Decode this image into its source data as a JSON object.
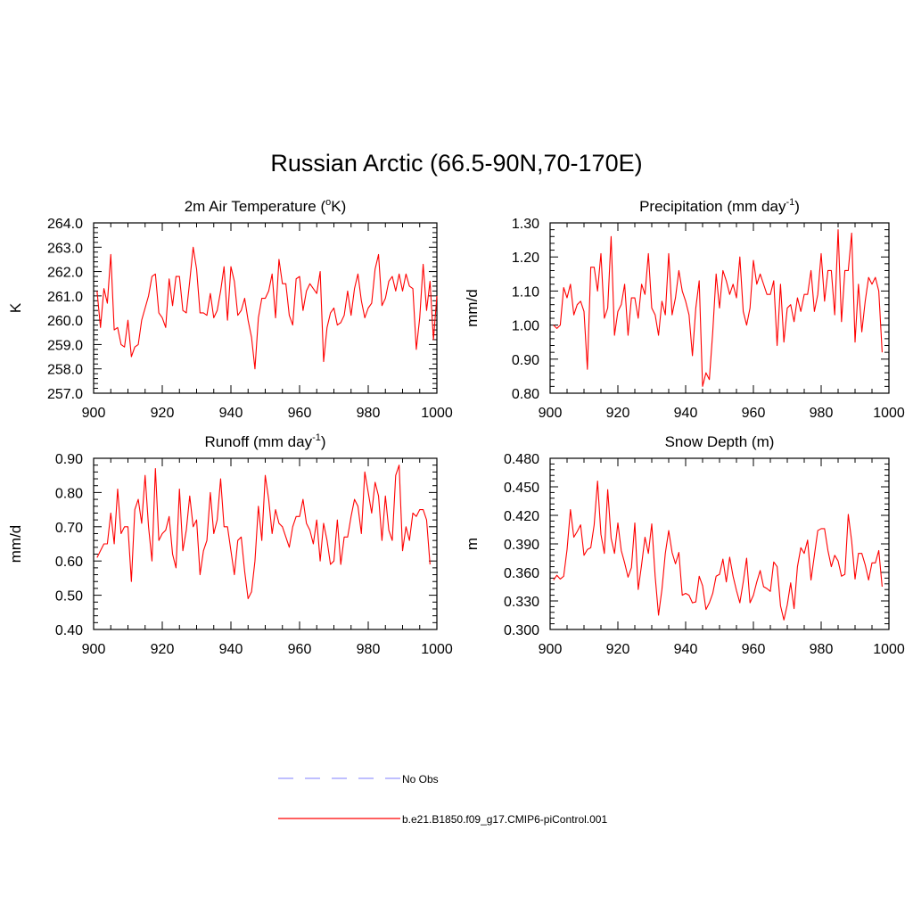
{
  "title": "Russian Arctic (66.5-90N,70-170E)",
  "chart_data": [
    {
      "type": "line",
      "title": "2m Air Temperature (°K)",
      "title_main": "2m Air Temperature (",
      "title_sup": "o",
      "title_tail": "K)",
      "ylabel": "K",
      "xlim": [
        900,
        1000
      ],
      "ylim": [
        257.0,
        264.0
      ],
      "xticks": [
        "900",
        "920",
        "940",
        "960",
        "980",
        "1000"
      ],
      "yticks": [
        "257.0",
        "258.0",
        "259.0",
        "260.0",
        "261.0",
        "262.0",
        "263.0",
        "264.0"
      ],
      "series": [
        {
          "name": "b.e21.B1850.f09_g17.CMIP6-piControl.001",
          "color": "#ff0000",
          "x_start": 901,
          "values": [
            261.2,
            259.7,
            261.3,
            260.7,
            262.7,
            259.6,
            259.7,
            259.0,
            258.9,
            260.0,
            258.5,
            258.9,
            259.0,
            260.0,
            260.5,
            261.0,
            261.8,
            261.9,
            260.3,
            260.1,
            259.7,
            261.7,
            260.6,
            261.8,
            261.8,
            260.4,
            260.3,
            261.6,
            263.0,
            262.1,
            260.3,
            260.3,
            260.2,
            261.1,
            260.1,
            260.4,
            261.2,
            262.2,
            260.0,
            262.2,
            261.6,
            260.2,
            260.4,
            260.9,
            260.0,
            259.3,
            258.0,
            260.1,
            260.9,
            260.9,
            261.2,
            261.9,
            260.1,
            262.5,
            261.5,
            261.5,
            260.2,
            259.8,
            261.7,
            261.8,
            260.4,
            261.2,
            261.5,
            261.3,
            261.1,
            262.0,
            258.3,
            259.7,
            260.3,
            260.5,
            259.8,
            259.9,
            260.2,
            261.2,
            260.2,
            261.3,
            261.9,
            260.8,
            260.1,
            260.5,
            260.7,
            262.1,
            262.7,
            260.6,
            260.9,
            261.6,
            261.8,
            261.2,
            261.9,
            261.2,
            261.9,
            261.4,
            261.3,
            258.8,
            260.1,
            262.3,
            260.4,
            261.6,
            259.2,
            261.0
          ]
        }
      ]
    },
    {
      "type": "line",
      "title": "Precipitation (mm day-1)",
      "title_main": "Precipitation (mm day",
      "title_sup": "-1",
      "title_tail": ")",
      "ylabel": "mm/d",
      "xlim": [
        900,
        1000
      ],
      "ylim": [
        0.8,
        1.3
      ],
      "xticks": [
        "900",
        "920",
        "940",
        "960",
        "980",
        "1000"
      ],
      "yticks": [
        "0.80",
        "0.90",
        "1.00",
        "1.10",
        "1.20",
        "1.30"
      ],
      "series": [
        {
          "name": "b.e21.B1850.f09_g17.CMIP6-piControl.001",
          "color": "#ff0000",
          "x_start": 901,
          "values": [
            1.0,
            0.99,
            1.0,
            1.11,
            1.08,
            1.12,
            1.03,
            1.06,
            1.07,
            1.04,
            0.87,
            1.17,
            1.17,
            1.1,
            1.21,
            1.02,
            1.05,
            1.26,
            0.97,
            1.04,
            1.06,
            1.12,
            0.97,
            1.08,
            1.08,
            1.02,
            1.12,
            1.09,
            1.21,
            1.05,
            1.03,
            0.97,
            1.07,
            1.03,
            1.21,
            1.03,
            1.08,
            1.16,
            1.1,
            1.07,
            1.03,
            0.91,
            1.05,
            1.13,
            0.82,
            0.86,
            0.84,
            0.98,
            1.15,
            1.05,
            1.16,
            1.13,
            1.09,
            1.12,
            1.08,
            1.2,
            1.04,
            1.0,
            1.05,
            1.19,
            1.12,
            1.15,
            1.12,
            1.09,
            1.09,
            1.13,
            0.94,
            1.12,
            0.95,
            1.05,
            1.06,
            1.01,
            1.08,
            1.04,
            1.09,
            1.09,
            1.16,
            1.04,
            1.09,
            1.21,
            1.07,
            1.16,
            1.16,
            1.03,
            1.28,
            1.01,
            1.16,
            1.16,
            1.27,
            0.95,
            1.12,
            0.98,
            1.07,
            1.14,
            1.12,
            1.14,
            1.1,
            0.92
          ]
        }
      ]
    },
    {
      "type": "line",
      "title": "Runoff (mm day-1)",
      "title_main": "Runoff (mm day",
      "title_sup": "-1",
      "title_tail": ")",
      "ylabel": "mm/d",
      "xlim": [
        900,
        1000
      ],
      "ylim": [
        0.4,
        0.9
      ],
      "xticks": [
        "900",
        "920",
        "940",
        "960",
        "980",
        "1000"
      ],
      "yticks": [
        "0.40",
        "0.50",
        "0.60",
        "0.70",
        "0.80",
        "0.90"
      ],
      "series": [
        {
          "name": "b.e21.B1850.f09_g17.CMIP6-piControl.001",
          "color": "#ff0000",
          "x_start": 901,
          "values": [
            0.61,
            0.63,
            0.65,
            0.65,
            0.74,
            0.65,
            0.81,
            0.68,
            0.7,
            0.7,
            0.54,
            0.75,
            0.78,
            0.71,
            0.85,
            0.7,
            0.6,
            0.87,
            0.66,
            0.68,
            0.69,
            0.73,
            0.62,
            0.58,
            0.81,
            0.63,
            0.69,
            0.79,
            0.7,
            0.72,
            0.56,
            0.63,
            0.66,
            0.8,
            0.68,
            0.72,
            0.84,
            0.7,
            0.7,
            0.63,
            0.56,
            0.66,
            0.67,
            0.57,
            0.49,
            0.51,
            0.6,
            0.76,
            0.66,
            0.85,
            0.78,
            0.68,
            0.75,
            0.71,
            0.7,
            0.67,
            0.64,
            0.7,
            0.73,
            0.73,
            0.78,
            0.71,
            0.69,
            0.65,
            0.72,
            0.6,
            0.71,
            0.66,
            0.59,
            0.6,
            0.72,
            0.59,
            0.67,
            0.67,
            0.73,
            0.78,
            0.76,
            0.68,
            0.86,
            0.8,
            0.74,
            0.83,
            0.79,
            0.66,
            0.79,
            0.69,
            0.66,
            0.85,
            0.88,
            0.63,
            0.7,
            0.66,
            0.74,
            0.73,
            0.75,
            0.75,
            0.72,
            0.59
          ]
        }
      ]
    },
    {
      "type": "line",
      "title": "Snow Depth (m)",
      "title_main": "Snow Depth (m)",
      "title_sup": "",
      "title_tail": "",
      "ylabel": "m",
      "xlim": [
        900,
        1000
      ],
      "ylim": [
        0.3,
        0.48
      ],
      "xticks": [
        "900",
        "920",
        "940",
        "960",
        "980",
        "1000"
      ],
      "yticks": [
        "0.300",
        "0.330",
        "0.360",
        "0.390",
        "0.420",
        "0.450",
        "0.480"
      ],
      "series": [
        {
          "name": "b.e21.B1850.f09_g17.CMIP6-piControl.001",
          "color": "#ff0000",
          "x_start": 901,
          "values": [
            0.352,
            0.357,
            0.353,
            0.356,
            0.384,
            0.426,
            0.397,
            0.403,
            0.41,
            0.378,
            0.384,
            0.386,
            0.41,
            0.456,
            0.4,
            0.38,
            0.447,
            0.396,
            0.38,
            0.412,
            0.383,
            0.37,
            0.355,
            0.365,
            0.412,
            0.342,
            0.368,
            0.397,
            0.38,
            0.411,
            0.356,
            0.315,
            0.342,
            0.38,
            0.404,
            0.381,
            0.369,
            0.381,
            0.336,
            0.338,
            0.336,
            0.328,
            0.329,
            0.356,
            0.346,
            0.321,
            0.328,
            0.338,
            0.356,
            0.358,
            0.374,
            0.35,
            0.376,
            0.356,
            0.341,
            0.328,
            0.35,
            0.375,
            0.328,
            0.336,
            0.35,
            0.362,
            0.345,
            0.343,
            0.34,
            0.371,
            0.366,
            0.325,
            0.31,
            0.326,
            0.349,
            0.322,
            0.366,
            0.386,
            0.38,
            0.394,
            0.352,
            0.378,
            0.404,
            0.406,
            0.406,
            0.383,
            0.366,
            0.378,
            0.372,
            0.356,
            0.358,
            0.421,
            0.393,
            0.353,
            0.38,
            0.38,
            0.368,
            0.352,
            0.37,
            0.37,
            0.383,
            0.345
          ]
        }
      ]
    }
  ],
  "legend": [
    {
      "label": "No Obs",
      "color": "#9999ff",
      "style": "dashed"
    },
    {
      "label": "b.e21.B1850.f09_g17.CMIP6-piControl.001",
      "color": "#ff0000",
      "style": "solid"
    }
  ]
}
